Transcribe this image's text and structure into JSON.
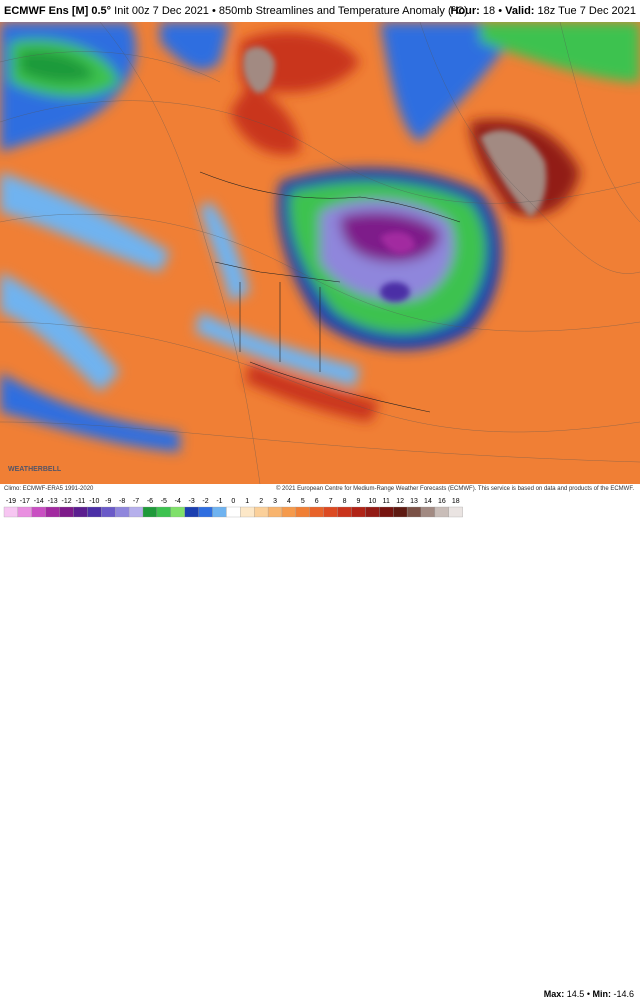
{
  "header": {
    "model": "ECMWF Ens [M] 0.5°",
    "description": "Init 00z 7 Dec 2021 • 850mb Streamlines and Temperature Anomaly (°C)",
    "hour_label": "Hour:",
    "hour": "18",
    "valid_label": "Valid:",
    "valid": "18z Tue 7 Dec 2021"
  },
  "footer": {
    "climo": "Climo: ECMWF-ERA5 1991-2020",
    "copyright": "© 2021 European Centre for Medium-Range Weather Forecasts (ECMWF). This service is based on data and products of the ECMWF.",
    "max_label": "Max:",
    "max": "14.5",
    "min_label": "Min:",
    "min": "-14.6",
    "logo": "WEATHERBELL"
  },
  "colorbar": [
    {
      "label": "-19",
      "color": "#f7c6f2"
    },
    {
      "label": "-17",
      "color": "#e98fe0"
    },
    {
      "label": "-14",
      "color": "#c94fc2"
    },
    {
      "label": "-13",
      "color": "#a22aa0"
    },
    {
      "label": "-12",
      "color": "#7e1a8a"
    },
    {
      "label": "-11",
      "color": "#5b1e8f"
    },
    {
      "label": "-10",
      "color": "#4b2fa6"
    },
    {
      "label": "-9",
      "color": "#6a5ac8"
    },
    {
      "label": "-8",
      "color": "#8f86dc"
    },
    {
      "label": "-7",
      "color": "#b6b0ec"
    },
    {
      "label": "-6",
      "color": "#1f9a3a"
    },
    {
      "label": "-5",
      "color": "#3dc24f"
    },
    {
      "label": "-4",
      "color": "#7fe06a"
    },
    {
      "label": "-3",
      "color": "#1b3fb0"
    },
    {
      "label": "-2",
      "color": "#2f6ee0"
    },
    {
      "label": "-1",
      "color": "#6fb3f0"
    },
    {
      "label": "0",
      "color": "#ffffff"
    },
    {
      "label": "1",
      "color": "#fde8c8"
    },
    {
      "label": "2",
      "color": "#fbd09a"
    },
    {
      "label": "3",
      "color": "#f8b46e"
    },
    {
      "label": "4",
      "color": "#f59a4c"
    },
    {
      "label": "5",
      "color": "#f07f35"
    },
    {
      "label": "6",
      "color": "#e8632a"
    },
    {
      "label": "7",
      "color": "#dc4a22"
    },
    {
      "label": "8",
      "color": "#c9341c"
    },
    {
      "label": "9",
      "color": "#b02316"
    },
    {
      "label": "10",
      "color": "#921a14"
    },
    {
      "label": "11",
      "color": "#76140f"
    },
    {
      "label": "12",
      "color": "#5e1a12"
    },
    {
      "label": "13",
      "color": "#7a5146"
    },
    {
      "label": "14",
      "color": "#a28a82"
    },
    {
      "label": "16",
      "color": "#c9bdb8"
    },
    {
      "label": "18",
      "color": "#eae4e2"
    }
  ]
}
